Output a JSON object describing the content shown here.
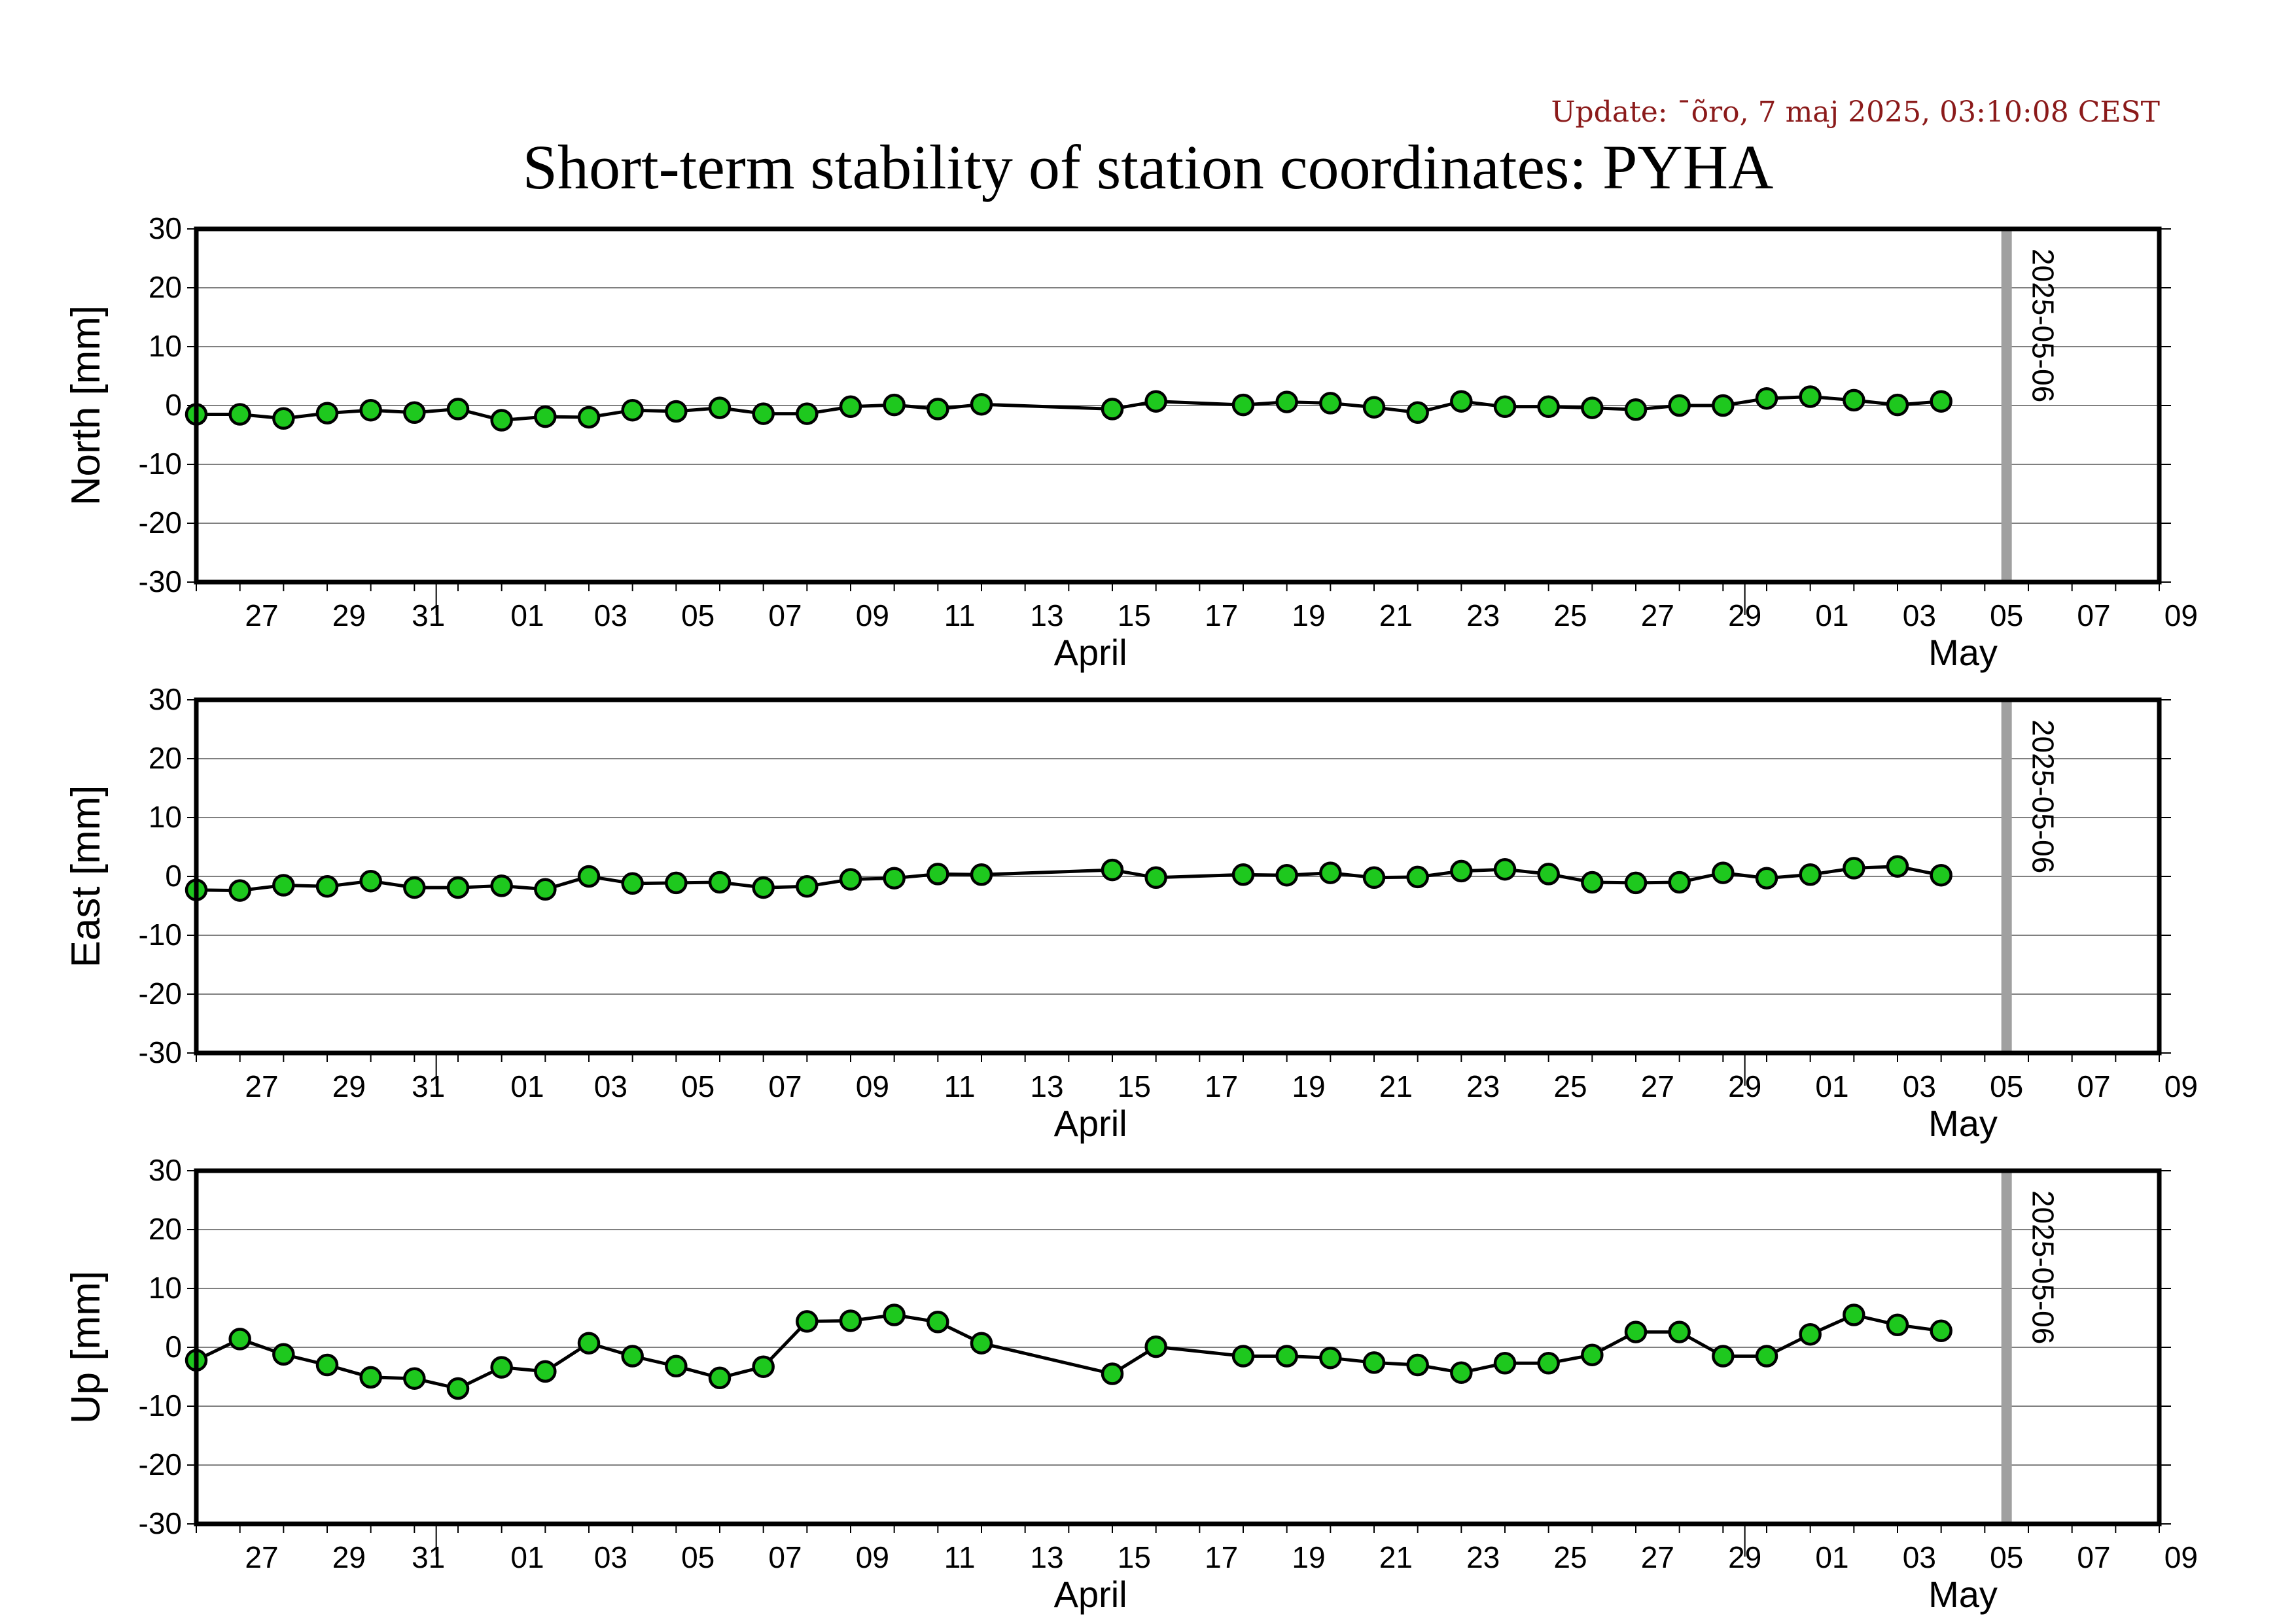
{
  "update_label": "Update: ¯õro, 7 maj 2025, 03:10:08 CEST",
  "title": "Short-term stability of station coordinates: PYHA",
  "marker_label": "2025-05-06",
  "month_labels": [
    "April",
    "May"
  ],
  "colors": {
    "point_fill": "#1ec81e",
    "point_stroke": "#000000",
    "line": "#000000",
    "marker": "#a0a0a0",
    "grid": "#808080",
    "update_text": "#8b1a1a"
  },
  "chart_data": [
    {
      "type": "line",
      "ylabel": "North [mm]",
      "ylim": [
        -30,
        30
      ],
      "yticks": [
        30,
        20,
        10,
        0,
        -10,
        -20,
        -30
      ],
      "xlim": [
        "2025-03-26",
        "2025-05-10"
      ],
      "marker_date": "2025-05-06",
      "grid": true,
      "x_tick_labels": [
        "27",
        "29",
        "31",
        "01",
        "03",
        "05",
        "07",
        "09",
        "11",
        "13",
        "15",
        "17",
        "19",
        "21",
        "23",
        "25",
        "27",
        "29",
        "01",
        "03",
        "05",
        "07",
        "09"
      ],
      "x": [
        "2025-03-26",
        "2025-03-27",
        "2025-03-28",
        "2025-03-29",
        "2025-03-30",
        "2025-03-31",
        "2025-04-01",
        "2025-04-02",
        "2025-04-03",
        "2025-04-04",
        "2025-04-05",
        "2025-04-06",
        "2025-04-07",
        "2025-04-08",
        "2025-04-09",
        "2025-04-10",
        "2025-04-11",
        "2025-04-12",
        "2025-04-13",
        "2025-04-16",
        "2025-04-17",
        "2025-04-19",
        "2025-04-20",
        "2025-04-21",
        "2025-04-22",
        "2025-04-23",
        "2025-04-24",
        "2025-04-25",
        "2025-04-26",
        "2025-04-27",
        "2025-04-28",
        "2025-04-29",
        "2025-04-30",
        "2025-05-01",
        "2025-05-02",
        "2025-05-03",
        "2025-05-04",
        "2025-05-05"
      ],
      "values": [
        -1.5,
        -1.5,
        -2.2,
        -1.3,
        -0.8,
        -1.2,
        -0.6,
        -2.5,
        -1.9,
        -2.0,
        -0.8,
        -1.0,
        -0.4,
        -1.4,
        -1.4,
        -0.2,
        0.1,
        -0.6,
        0.2,
        -0.6,
        0.7,
        0.1,
        0.6,
        0.4,
        -0.3,
        -1.2,
        0.7,
        -0.2,
        -0.2,
        -0.4,
        -0.7,
        0.0,
        0.0,
        1.2,
        1.5,
        0.9,
        0.1,
        0.7
      ]
    },
    {
      "type": "line",
      "ylabel": "East [mm]",
      "ylim": [
        -30,
        30
      ],
      "yticks": [
        30,
        20,
        10,
        0,
        -10,
        -20,
        -30
      ],
      "xlim": [
        "2025-03-26",
        "2025-05-10"
      ],
      "marker_date": "2025-05-06",
      "grid": true,
      "x_tick_labels": [
        "27",
        "29",
        "31",
        "01",
        "03",
        "05",
        "07",
        "09",
        "11",
        "13",
        "15",
        "17",
        "19",
        "21",
        "23",
        "25",
        "27",
        "29",
        "01",
        "03",
        "05",
        "07",
        "09"
      ],
      "x": [
        "2025-03-26",
        "2025-03-27",
        "2025-03-28",
        "2025-03-29",
        "2025-03-30",
        "2025-03-31",
        "2025-04-01",
        "2025-04-02",
        "2025-04-03",
        "2025-04-04",
        "2025-04-05",
        "2025-04-06",
        "2025-04-07",
        "2025-04-08",
        "2025-04-09",
        "2025-04-10",
        "2025-04-11",
        "2025-04-12",
        "2025-04-13",
        "2025-04-16",
        "2025-04-17",
        "2025-04-19",
        "2025-04-20",
        "2025-04-21",
        "2025-04-22",
        "2025-04-23",
        "2025-04-24",
        "2025-04-25",
        "2025-04-26",
        "2025-04-27",
        "2025-04-28",
        "2025-04-29",
        "2025-04-30",
        "2025-05-01",
        "2025-05-02",
        "2025-05-03",
        "2025-05-04",
        "2025-05-05"
      ],
      "values": [
        -2.3,
        -2.4,
        -1.5,
        -1.7,
        -0.8,
        -1.9,
        -1.9,
        -1.6,
        -2.2,
        0.0,
        -1.2,
        -1.1,
        -1.0,
        -1.9,
        -1.7,
        -0.5,
        -0.3,
        0.4,
        0.3,
        1.1,
        -0.2,
        0.3,
        0.2,
        0.6,
        -0.2,
        -0.1,
        0.9,
        1.2,
        0.4,
        -1.0,
        -1.1,
        -1.0,
        0.6,
        -0.3,
        0.3,
        1.4,
        1.7,
        0.2
      ]
    },
    {
      "type": "line",
      "ylabel": "Up [mm]",
      "ylim": [
        -30,
        30
      ],
      "yticks": [
        30,
        20,
        10,
        0,
        -10,
        -20,
        -30
      ],
      "xlim": [
        "2025-03-26",
        "2025-05-10"
      ],
      "marker_date": "2025-05-06",
      "grid": true,
      "x_tick_labels": [
        "27",
        "29",
        "31",
        "01",
        "03",
        "05",
        "07",
        "09",
        "11",
        "13",
        "15",
        "17",
        "19",
        "21",
        "23",
        "25",
        "27",
        "29",
        "01",
        "03",
        "05",
        "07",
        "09"
      ],
      "x": [
        "2025-03-26",
        "2025-03-27",
        "2025-03-28",
        "2025-03-29",
        "2025-03-30",
        "2025-03-31",
        "2025-04-01",
        "2025-04-02",
        "2025-04-03",
        "2025-04-04",
        "2025-04-05",
        "2025-04-06",
        "2025-04-07",
        "2025-04-08",
        "2025-04-09",
        "2025-04-10",
        "2025-04-11",
        "2025-04-12",
        "2025-04-13",
        "2025-04-16",
        "2025-04-17",
        "2025-04-19",
        "2025-04-20",
        "2025-04-21",
        "2025-04-22",
        "2025-04-23",
        "2025-04-24",
        "2025-04-25",
        "2025-04-26",
        "2025-04-27",
        "2025-04-28",
        "2025-04-29",
        "2025-04-30",
        "2025-05-01",
        "2025-05-02",
        "2025-05-03",
        "2025-05-04",
        "2025-05-05"
      ],
      "values": [
        -2.2,
        1.4,
        -1.2,
        -3.0,
        -5.1,
        -5.3,
        -7.0,
        -3.4,
        -4.1,
        0.7,
        -1.5,
        -3.2,
        -5.2,
        -3.3,
        4.4,
        4.5,
        5.5,
        4.3,
        0.7,
        -4.5,
        0.1,
        -1.5,
        -1.5,
        -1.8,
        -2.6,
        -3.0,
        -4.3,
        -2.7,
        -2.7,
        -1.3,
        2.6,
        2.6,
        -1.5,
        -1.5,
        2.2,
        5.5,
        3.8,
        2.8
      ]
    }
  ]
}
